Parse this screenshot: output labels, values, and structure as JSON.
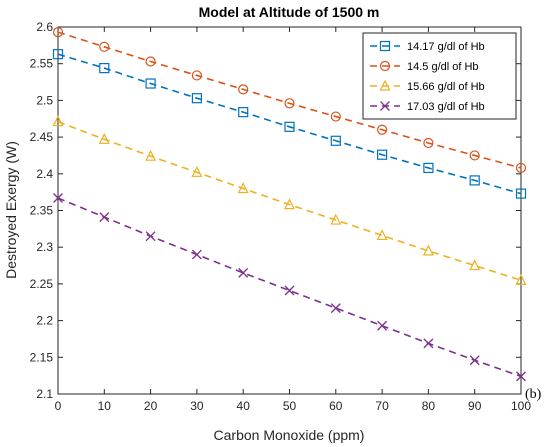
{
  "chart_data": {
    "type": "line",
    "title": "Model at Altitude of 1500 m",
    "xlabel": "Carbon Monoxide (ppm)",
    "ylabel": "Destroyed Exergy (W)",
    "x": [
      0,
      10,
      20,
      30,
      40,
      50,
      60,
      70,
      80,
      90,
      100
    ],
    "xlim": [
      0,
      100
    ],
    "ylim": [
      2.1,
      2.6
    ],
    "xticks": [
      "0",
      "10",
      "20",
      "30",
      "40",
      "50",
      "60",
      "70",
      "80",
      "90",
      "100"
    ],
    "yticks": [
      "2.1",
      "2.15",
      "2.2",
      "2.25",
      "2.3",
      "2.35",
      "2.4",
      "2.45",
      "2.5",
      "2.55",
      "2.6"
    ],
    "grid": false,
    "legend_position": "top-right",
    "annotation": "(b)",
    "series": [
      {
        "name": "14.17 g/dl of Hb",
        "color": "#0072BD",
        "marker": "square",
        "values": [
          2.563,
          2.544,
          2.523,
          2.503,
          2.484,
          2.464,
          2.445,
          2.426,
          2.408,
          2.391,
          2.373
        ]
      },
      {
        "name": "14.5 g/dl of Hb",
        "color": "#D95319",
        "marker": "circle",
        "values": [
          2.593,
          2.573,
          2.553,
          2.534,
          2.515,
          2.496,
          2.478,
          2.46,
          2.442,
          2.425,
          2.408
        ]
      },
      {
        "name": "15.66  g/dl of Hb",
        "color": "#EDB120",
        "marker": "triangle",
        "values": [
          2.471,
          2.447,
          2.424,
          2.402,
          2.38,
          2.358,
          2.337,
          2.316,
          2.295,
          2.275,
          2.255
        ]
      },
      {
        "name": "17.03 g/dl of Hb",
        "color": "#7E2F8E",
        "marker": "x",
        "values": [
          2.367,
          2.341,
          2.315,
          2.29,
          2.265,
          2.241,
          2.217,
          2.193,
          2.169,
          2.146,
          2.124
        ]
      }
    ]
  }
}
